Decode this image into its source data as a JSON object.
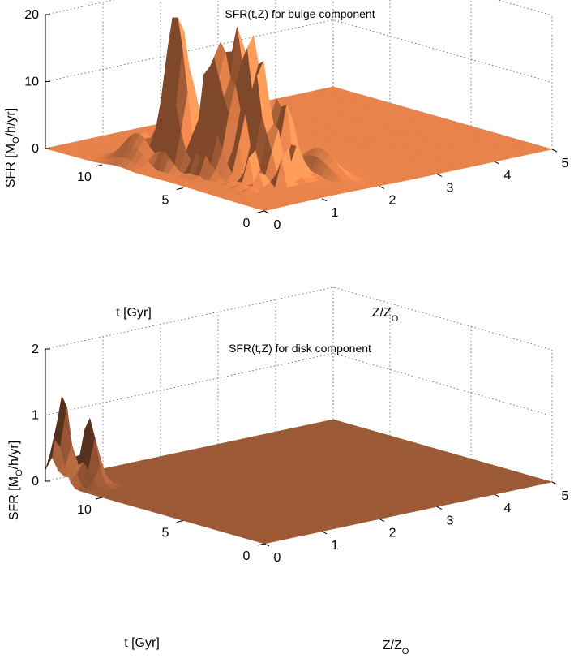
{
  "chart_data": [
    {
      "type": "surface",
      "title": "SFR(t,Z) for bulge component",
      "xlabel": "t [Gyr]",
      "ylabel": "Z/Z",
      "ylabel_sub": "O",
      "zlabel_pre": "SFR [M",
      "zlabel_sub": "O",
      "zlabel_post": "/h/yr]",
      "t_ticks": [
        "0",
        "5",
        "10"
      ],
      "z_ticks": [
        "0",
        "1",
        "2",
        "3",
        "4",
        "5"
      ],
      "sfr_ticks": [
        "0",
        "10",
        "20"
      ],
      "t_range": [
        0,
        13.5
      ],
      "z_range": [
        0,
        5
      ],
      "sfr_range": [
        0,
        20
      ],
      "grid": true,
      "surface_color": "#e8834c",
      "peaks": [
        {
          "t": 7.5,
          "z": 0.6,
          "sfr": 24.0
        },
        {
          "t": 5.5,
          "z": 0.8,
          "sfr": 19.5
        },
        {
          "t": 5.0,
          "z": 0.9,
          "sfr": 19.0
        },
        {
          "t": 4.5,
          "z": 1.0,
          "sfr": 18.0
        },
        {
          "t": 4.0,
          "z": 1.0,
          "sfr": 17.5
        },
        {
          "t": 5.0,
          "z": 1.2,
          "sfr": 15.0
        },
        {
          "t": 3.5,
          "z": 1.3,
          "sfr": 12.0
        },
        {
          "t": 9.0,
          "z": 0.4,
          "sfr": 5.0
        },
        {
          "t": 3.0,
          "z": 1.8,
          "sfr": 4.0
        }
      ]
    },
    {
      "type": "surface",
      "title": "SFR(t,Z) for disk component",
      "xlabel": "t [Gyr]",
      "ylabel": "Z/Z",
      "ylabel_sub": "O",
      "zlabel_pre": "SFR [M",
      "zlabel_sub": "O",
      "zlabel_post": "/h/yr]",
      "t_ticks": [
        "0",
        "5",
        "10"
      ],
      "z_ticks": [
        "0",
        "1",
        "2",
        "3",
        "4",
        "5"
      ],
      "sfr_ticks": [
        "0",
        "1",
        "2"
      ],
      "t_range": [
        0,
        13.5
      ],
      "z_range": [
        0,
        5
      ],
      "sfr_range": [
        0,
        2
      ],
      "grid": true,
      "surface_color": "#9c5a37",
      "peaks": [
        {
          "t": 12.8,
          "z": 0.1,
          "sfr": 1.35
        },
        {
          "t": 12.0,
          "z": 0.35,
          "sfr": 1.0
        }
      ]
    }
  ]
}
